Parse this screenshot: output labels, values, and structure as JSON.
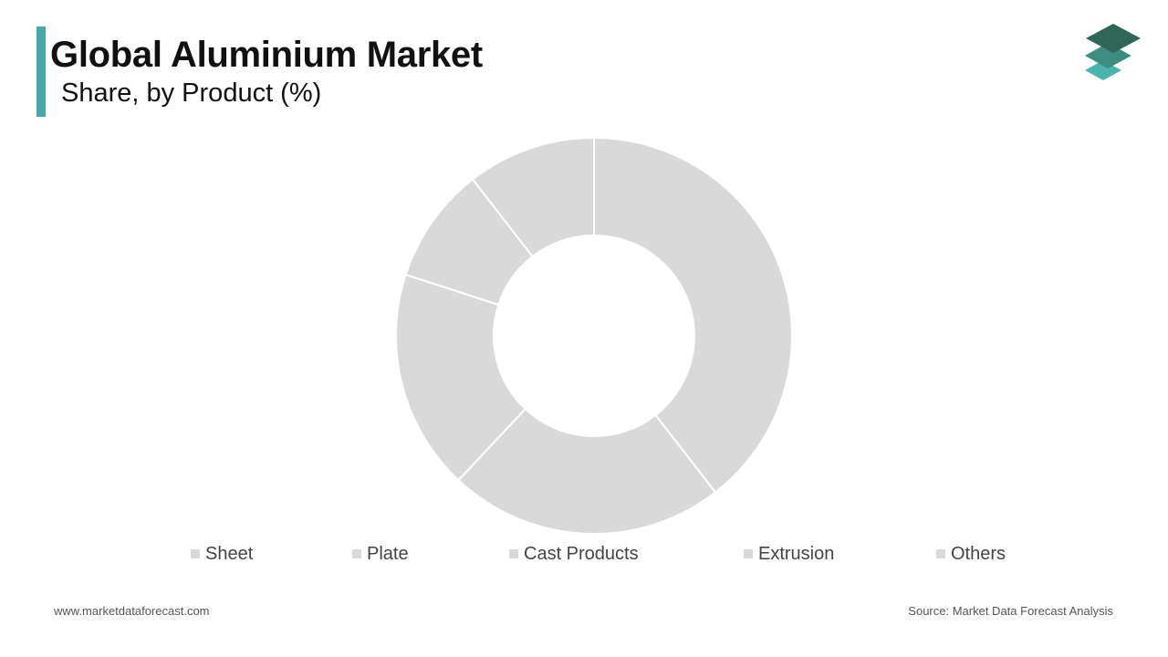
{
  "header": {
    "title": "Global Aluminium Market",
    "subtitle": "Share, by Product (%)"
  },
  "logo": {
    "icon": "layered-stack-logo",
    "colors": [
      "#2f6658",
      "#3d8c80",
      "#4ab3ad"
    ]
  },
  "colors": {
    "accent": "#4aa9a8",
    "slice": "#d9d9d9",
    "slice_border": "#ffffff"
  },
  "chart_data": {
    "type": "pie",
    "variant": "donut",
    "labels": [
      "Sheet",
      "Plate",
      "Cast Products",
      "Extrusion",
      "Others"
    ],
    "values": [
      39.5,
      22.5,
      18.0,
      9.5,
      10.5
    ],
    "legend_position": "bottom"
  },
  "footer": {
    "website": "www.marketdataforecast.com",
    "source": "Source: Market Data Forecast Analysis"
  }
}
